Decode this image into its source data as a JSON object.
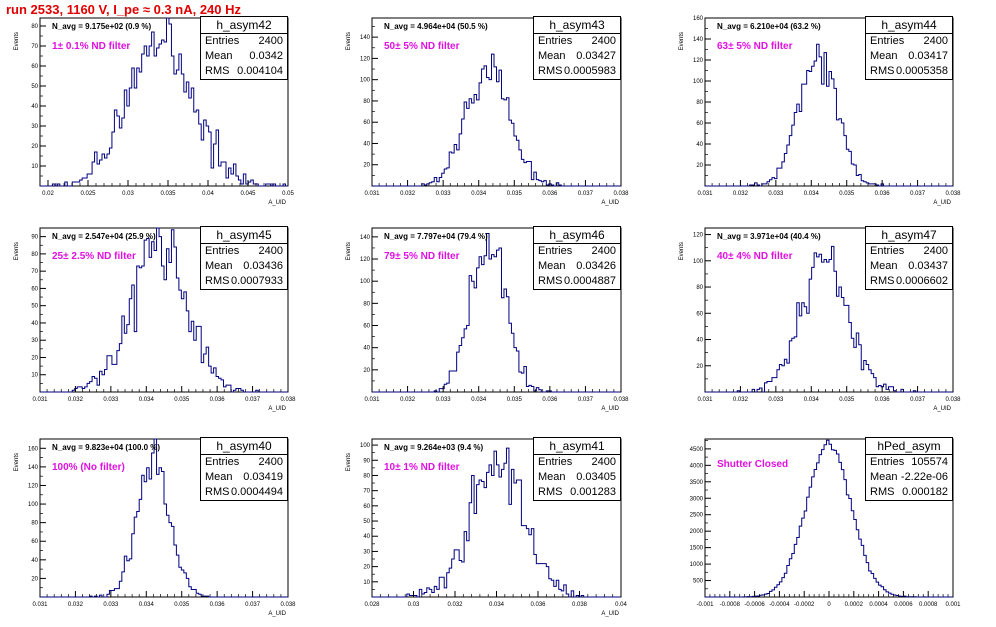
{
  "header": {
    "title": "run 2533,  1160 V, I_pe ≈ 0.3 nA, 240 Hz"
  },
  "chart_data": [
    {
      "type": "bar",
      "title": "h_asym42",
      "stats": {
        "entries": "2400",
        "mean": "0.0342",
        "rms": "0.004104"
      },
      "annotation": "N_avg = 9.175e+02 (0.9 %)",
      "filter_label": "1± 0.1% ND filter",
      "xlabel": "A_UID",
      "ylabel": "Events",
      "xlim": [
        0.019,
        0.05
      ],
      "ylim": [
        0,
        84
      ],
      "xticks": [
        0.02,
        0.025,
        0.03,
        0.035,
        0.04,
        0.045,
        0.05
      ],
      "xtick_labels": [
        "0.02",
        "0.025",
        "0.03",
        "0.035",
        "0.04",
        "0.045",
        "0.05"
      ],
      "yticks": [
        10,
        20,
        30,
        40,
        50,
        60,
        70,
        80
      ],
      "mean": 0.0342,
      "sigma": 0.0041,
      "n": 2400,
      "nbins": 100
    },
    {
      "type": "bar",
      "title": "h_asym43",
      "stats": {
        "entries": "2400",
        "mean": "0.03427",
        "rms": "0.0005983"
      },
      "annotation": "N_avg = 4.964e+04 (50.5 %)",
      "filter_label": "50± 5% ND filter",
      "xlabel": "A_UID",
      "ylabel": "Events",
      "xlim": [
        0.031,
        0.038
      ],
      "ylim": [
        0,
        158
      ],
      "xticks": [
        0.031,
        0.032,
        0.033,
        0.034,
        0.035,
        0.036,
        0.037,
        0.038
      ],
      "xtick_labels": [
        "0.031",
        "0.032",
        "0.033",
        "0.034",
        "0.035",
        "0.036",
        "0.037",
        "0.038"
      ],
      "yticks": [
        20,
        40,
        60,
        80,
        100,
        120,
        140
      ],
      "mean": 0.03427,
      "sigma": 0.0006,
      "n": 2400,
      "nbins": 100
    },
    {
      "type": "bar",
      "title": "h_asym44",
      "stats": {
        "entries": "2400",
        "mean": "0.03417",
        "rms": "0.0005358"
      },
      "annotation": "N_avg = 6.210e+04 (63.2 %)",
      "filter_label": "63± 5% ND filter",
      "xlabel": "A_UID",
      "ylabel": "Events",
      "xlim": [
        0.031,
        0.038
      ],
      "ylim": [
        0,
        160
      ],
      "xticks": [
        0.031,
        0.032,
        0.033,
        0.034,
        0.035,
        0.036,
        0.037,
        0.038
      ],
      "xtick_labels": [
        "0.031",
        "0.032",
        "0.033",
        "0.034",
        "0.035",
        "0.036",
        "0.037",
        "0.038"
      ],
      "yticks": [
        20,
        40,
        60,
        80,
        100,
        120,
        140,
        160
      ],
      "mean": 0.03417,
      "sigma": 0.00054,
      "n": 2400,
      "nbins": 100
    },
    {
      "type": "bar",
      "title": "h_asym45",
      "stats": {
        "entries": "2400",
        "mean": "0.03436",
        "rms": "0.0007933"
      },
      "annotation": "N_avg = 2.547e+04 (25.9 %)",
      "filter_label": "25± 2.5% ND filter",
      "xlabel": "A_UID",
      "ylabel": "Events",
      "xlim": [
        0.031,
        0.038
      ],
      "ylim": [
        0,
        95
      ],
      "xticks": [
        0.031,
        0.032,
        0.033,
        0.034,
        0.035,
        0.036,
        0.037,
        0.038
      ],
      "xtick_labels": [
        "0.031",
        "0.032",
        "0.033",
        "0.034",
        "0.035",
        "0.036",
        "0.037",
        "0.038"
      ],
      "yticks": [
        10,
        20,
        30,
        40,
        50,
        60,
        70,
        80,
        90
      ],
      "mean": 0.03436,
      "sigma": 0.00079,
      "n": 2400,
      "nbins": 100
    },
    {
      "type": "bar",
      "title": "h_asym46",
      "stats": {
        "entries": "2400",
        "mean": "0.03426",
        "rms": "0.0004887"
      },
      "annotation": "N_avg = 7.797e+04 (79.4 %)",
      "filter_label": "79± 5% ND filter",
      "xlabel": "A_UID",
      "ylabel": "Events",
      "xlim": [
        0.031,
        0.038
      ],
      "ylim": [
        0,
        148
      ],
      "xticks": [
        0.031,
        0.032,
        0.033,
        0.034,
        0.035,
        0.036,
        0.037,
        0.038
      ],
      "xtick_labels": [
        "0.031",
        "0.032",
        "0.033",
        "0.034",
        "0.035",
        "0.036",
        "0.037",
        "0.038"
      ],
      "yticks": [
        20,
        40,
        60,
        80,
        100,
        120,
        140
      ],
      "mean": 0.03426,
      "sigma": 0.00049,
      "n": 2400,
      "nbins": 100
    },
    {
      "type": "bar",
      "title": "h_asym47",
      "stats": {
        "entries": "2400",
        "mean": "0.03437",
        "rms": "0.0006602"
      },
      "annotation": "N_avg = 3.971e+04 (40.4 %)",
      "filter_label": "40± 4% ND filter",
      "xlabel": "A_UID",
      "ylabel": "Events",
      "xlim": [
        0.031,
        0.038
      ],
      "ylim": [
        0,
        125
      ],
      "xticks": [
        0.031,
        0.032,
        0.033,
        0.034,
        0.035,
        0.036,
        0.037,
        0.038
      ],
      "xtick_labels": [
        "0.031",
        "0.032",
        "0.033",
        "0.034",
        "0.035",
        "0.036",
        "0.037",
        "0.038"
      ],
      "yticks": [
        20,
        40,
        60,
        80,
        100,
        120
      ],
      "mean": 0.03437,
      "sigma": 0.00066,
      "n": 2400,
      "nbins": 100
    },
    {
      "type": "bar",
      "title": "h_asym40",
      "stats": {
        "entries": "2400",
        "mean": "0.03419",
        "rms": "0.0004494"
      },
      "annotation": "N_avg = 9.823e+04 (100.0 %)",
      "filter_label": "100% (No filter)",
      "xlabel": "A_UID",
      "ylabel": "Events",
      "xlim": [
        0.031,
        0.038
      ],
      "ylim": [
        0,
        170
      ],
      "xticks": [
        0.031,
        0.032,
        0.033,
        0.034,
        0.035,
        0.036,
        0.037,
        0.038
      ],
      "xtick_labels": [
        "0.031",
        "0.032",
        "0.033",
        "0.034",
        "0.035",
        "0.036",
        "0.037",
        "0.038"
      ],
      "yticks": [
        20,
        40,
        60,
        80,
        100,
        120,
        140,
        160
      ],
      "mean": 0.03419,
      "sigma": 0.00045,
      "n": 2400,
      "nbins": 100
    },
    {
      "type": "bar",
      "title": "h_asym41",
      "stats": {
        "entries": "2400",
        "mean": "0.03405",
        "rms": "0.001283"
      },
      "annotation": "N_avg = 9.264e+03 (9.4 %)",
      "filter_label": "10± 1% ND filter",
      "xlabel": "A_UID",
      "ylabel": "Events",
      "xlim": [
        0.028,
        0.04
      ],
      "ylim": [
        0,
        104
      ],
      "xticks": [
        0.028,
        0.03,
        0.032,
        0.034,
        0.036,
        0.038,
        0.04
      ],
      "xtick_labels": [
        "0.028",
        "0.03",
        "0.032",
        "0.034",
        "0.036",
        "0.038",
        "0.04"
      ],
      "yticks": [
        10,
        20,
        30,
        40,
        50,
        60,
        70,
        80,
        90,
        100
      ],
      "mean": 0.03405,
      "sigma": 0.00128,
      "n": 2400,
      "nbins": 100
    },
    {
      "type": "bar",
      "title": "hPed_asym",
      "stats": {
        "entries": "105574",
        "mean": "-2.22e-06",
        "rms": "0.000182"
      },
      "annotation": "",
      "filter_label": "Shutter Closed",
      "xlabel": "",
      "ylabel": "",
      "xlim": [
        -0.001,
        0.001
      ],
      "ylim": [
        0,
        4800
      ],
      "xticks": [
        -0.001,
        -0.0008,
        -0.0006,
        -0.0004,
        -0.0002,
        0,
        0.0002,
        0.0004,
        0.0006,
        0.0008,
        0.001
      ],
      "xtick_labels": [
        "-0.001",
        "-0.0008",
        "-0.0006",
        "-0.0004",
        "-0.0002",
        "0",
        "0.0002",
        "0.0004",
        "0.0006",
        "0.0008",
        "0.001"
      ],
      "yticks": [
        500,
        1000,
        1500,
        2000,
        2500,
        3000,
        3500,
        4000,
        4500
      ],
      "mean": -2.22e-06,
      "sigma": 0.000182,
      "n": 105574,
      "nbins": 100
    }
  ],
  "colors": {
    "histogram": "#000080",
    "filter_text": "#e010e0",
    "title_text": "#e00000"
  }
}
